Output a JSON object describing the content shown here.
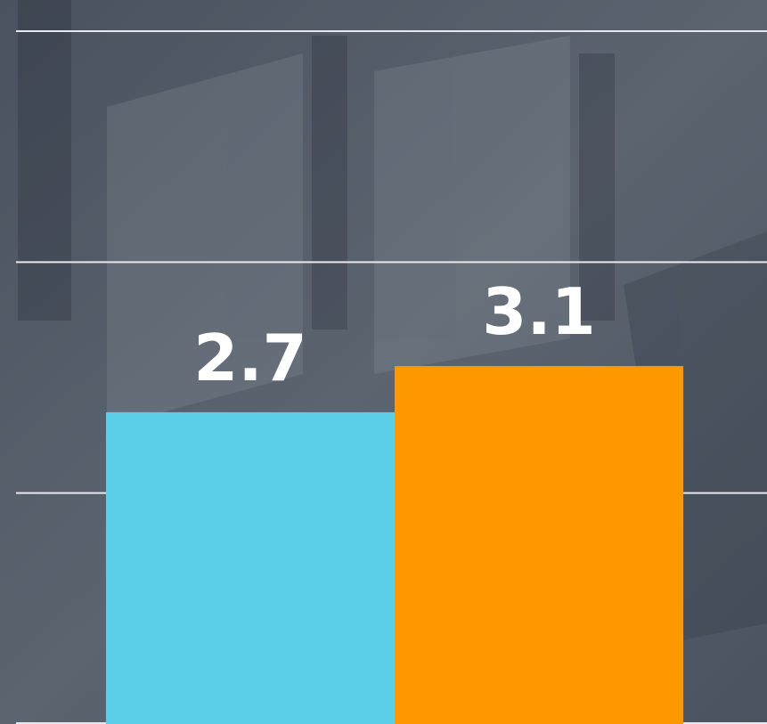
{
  "chart_data": {
    "type": "bar",
    "values": [
      2.7,
      3.1
    ],
    "colors": [
      "#5bcfe8",
      "#ff9800"
    ],
    "ylim": [
      0,
      6.27
    ],
    "yticks": [
      0,
      2,
      4,
      6
    ],
    "grid": true
  }
}
